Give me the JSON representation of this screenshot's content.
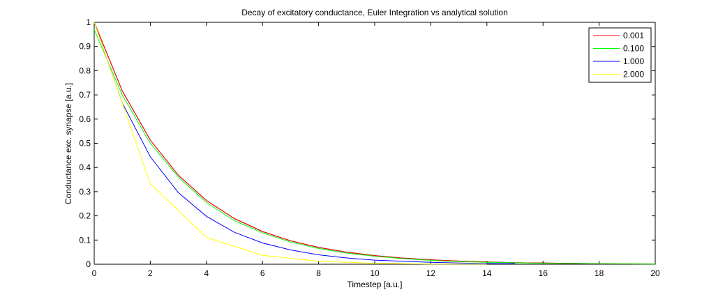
{
  "chart_data": {
    "type": "line",
    "title": "Decay of excitatory conductance, Euler Integration vs analytical solution",
    "xlabel": "Timestep [a.u.]",
    "ylabel": "Conductance exc. synapse [a.u.]",
    "xlim": [
      0,
      20
    ],
    "ylim": [
      0,
      1
    ],
    "xticks": [
      "0",
      "2",
      "4",
      "6",
      "8",
      "10",
      "12",
      "14",
      "16",
      "18",
      "20"
    ],
    "yticks": [
      "0",
      "0.1",
      "0.2",
      "0.3",
      "0.4",
      "0.5",
      "0.6",
      "0.7",
      "0.8",
      "0.9",
      "1"
    ],
    "grid": false,
    "legend_position": "top-right",
    "series": [
      {
        "name": "",
        "color": "#000000",
        "x": [
          0,
          1,
          2,
          3,
          4,
          5,
          6,
          7,
          8,
          9,
          10,
          11,
          12,
          13,
          14,
          15,
          16,
          17,
          18,
          19,
          20
        ],
        "y": [
          1.0,
          0.7165,
          0.5134,
          0.3679,
          0.2636,
          0.1889,
          0.1353,
          0.097,
          0.0695,
          0.0498,
          0.0357,
          0.0256,
          0.0183,
          0.0131,
          0.0094,
          0.0067,
          0.0048,
          0.0035,
          0.0025,
          0.0018,
          0.0013
        ]
      },
      {
        "name": "0.001",
        "color": "#ff0000",
        "x": [
          0,
          1,
          2,
          3,
          4,
          5,
          6,
          7,
          8,
          9,
          10,
          11,
          12,
          13,
          14,
          15,
          16,
          17,
          18,
          19,
          20
        ],
        "y": [
          1.0,
          0.7164,
          0.5133,
          0.3677,
          0.2634,
          0.1887,
          0.1352,
          0.0969,
          0.0694,
          0.0497,
          0.0356,
          0.0255,
          0.0183,
          0.0131,
          0.0094,
          0.0067,
          0.0048,
          0.0035,
          0.0025,
          0.0018,
          0.0013
        ]
      },
      {
        "name": "0.100",
        "color": "#00ff00",
        "x": [
          0,
          1,
          2,
          3,
          4,
          5,
          6,
          7,
          8,
          9,
          10,
          11,
          12,
          13,
          14,
          15,
          16,
          17,
          18,
          19,
          20
        ],
        "y": [
          0.97,
          0.7,
          0.5,
          0.36,
          0.255,
          0.18,
          0.13,
          0.092,
          0.065,
          0.046,
          0.033,
          0.023,
          0.016,
          0.011,
          0.008,
          0.006,
          0.004,
          0.003,
          0.002,
          0.0015,
          0.001
        ]
      },
      {
        "name": "1.000",
        "color": "#0000ff",
        "x": [
          0,
          1,
          2,
          3,
          4,
          5,
          6,
          7,
          8,
          9,
          10,
          11,
          12,
          13,
          14,
          15
        ],
        "y": [
          1.0,
          0.667,
          0.444,
          0.296,
          0.198,
          0.132,
          0.088,
          0.059,
          0.039,
          0.026,
          0.017,
          0.012,
          0.008,
          0.005,
          0.003,
          0.002
        ]
      },
      {
        "name": "2.000",
        "color": "#ffff00",
        "x": [
          0,
          2,
          4,
          6,
          8,
          10,
          12,
          14
        ],
        "y": [
          1.0,
          0.333,
          0.111,
          0.037,
          0.012,
          0.004,
          0.001,
          0.0005
        ]
      }
    ]
  }
}
